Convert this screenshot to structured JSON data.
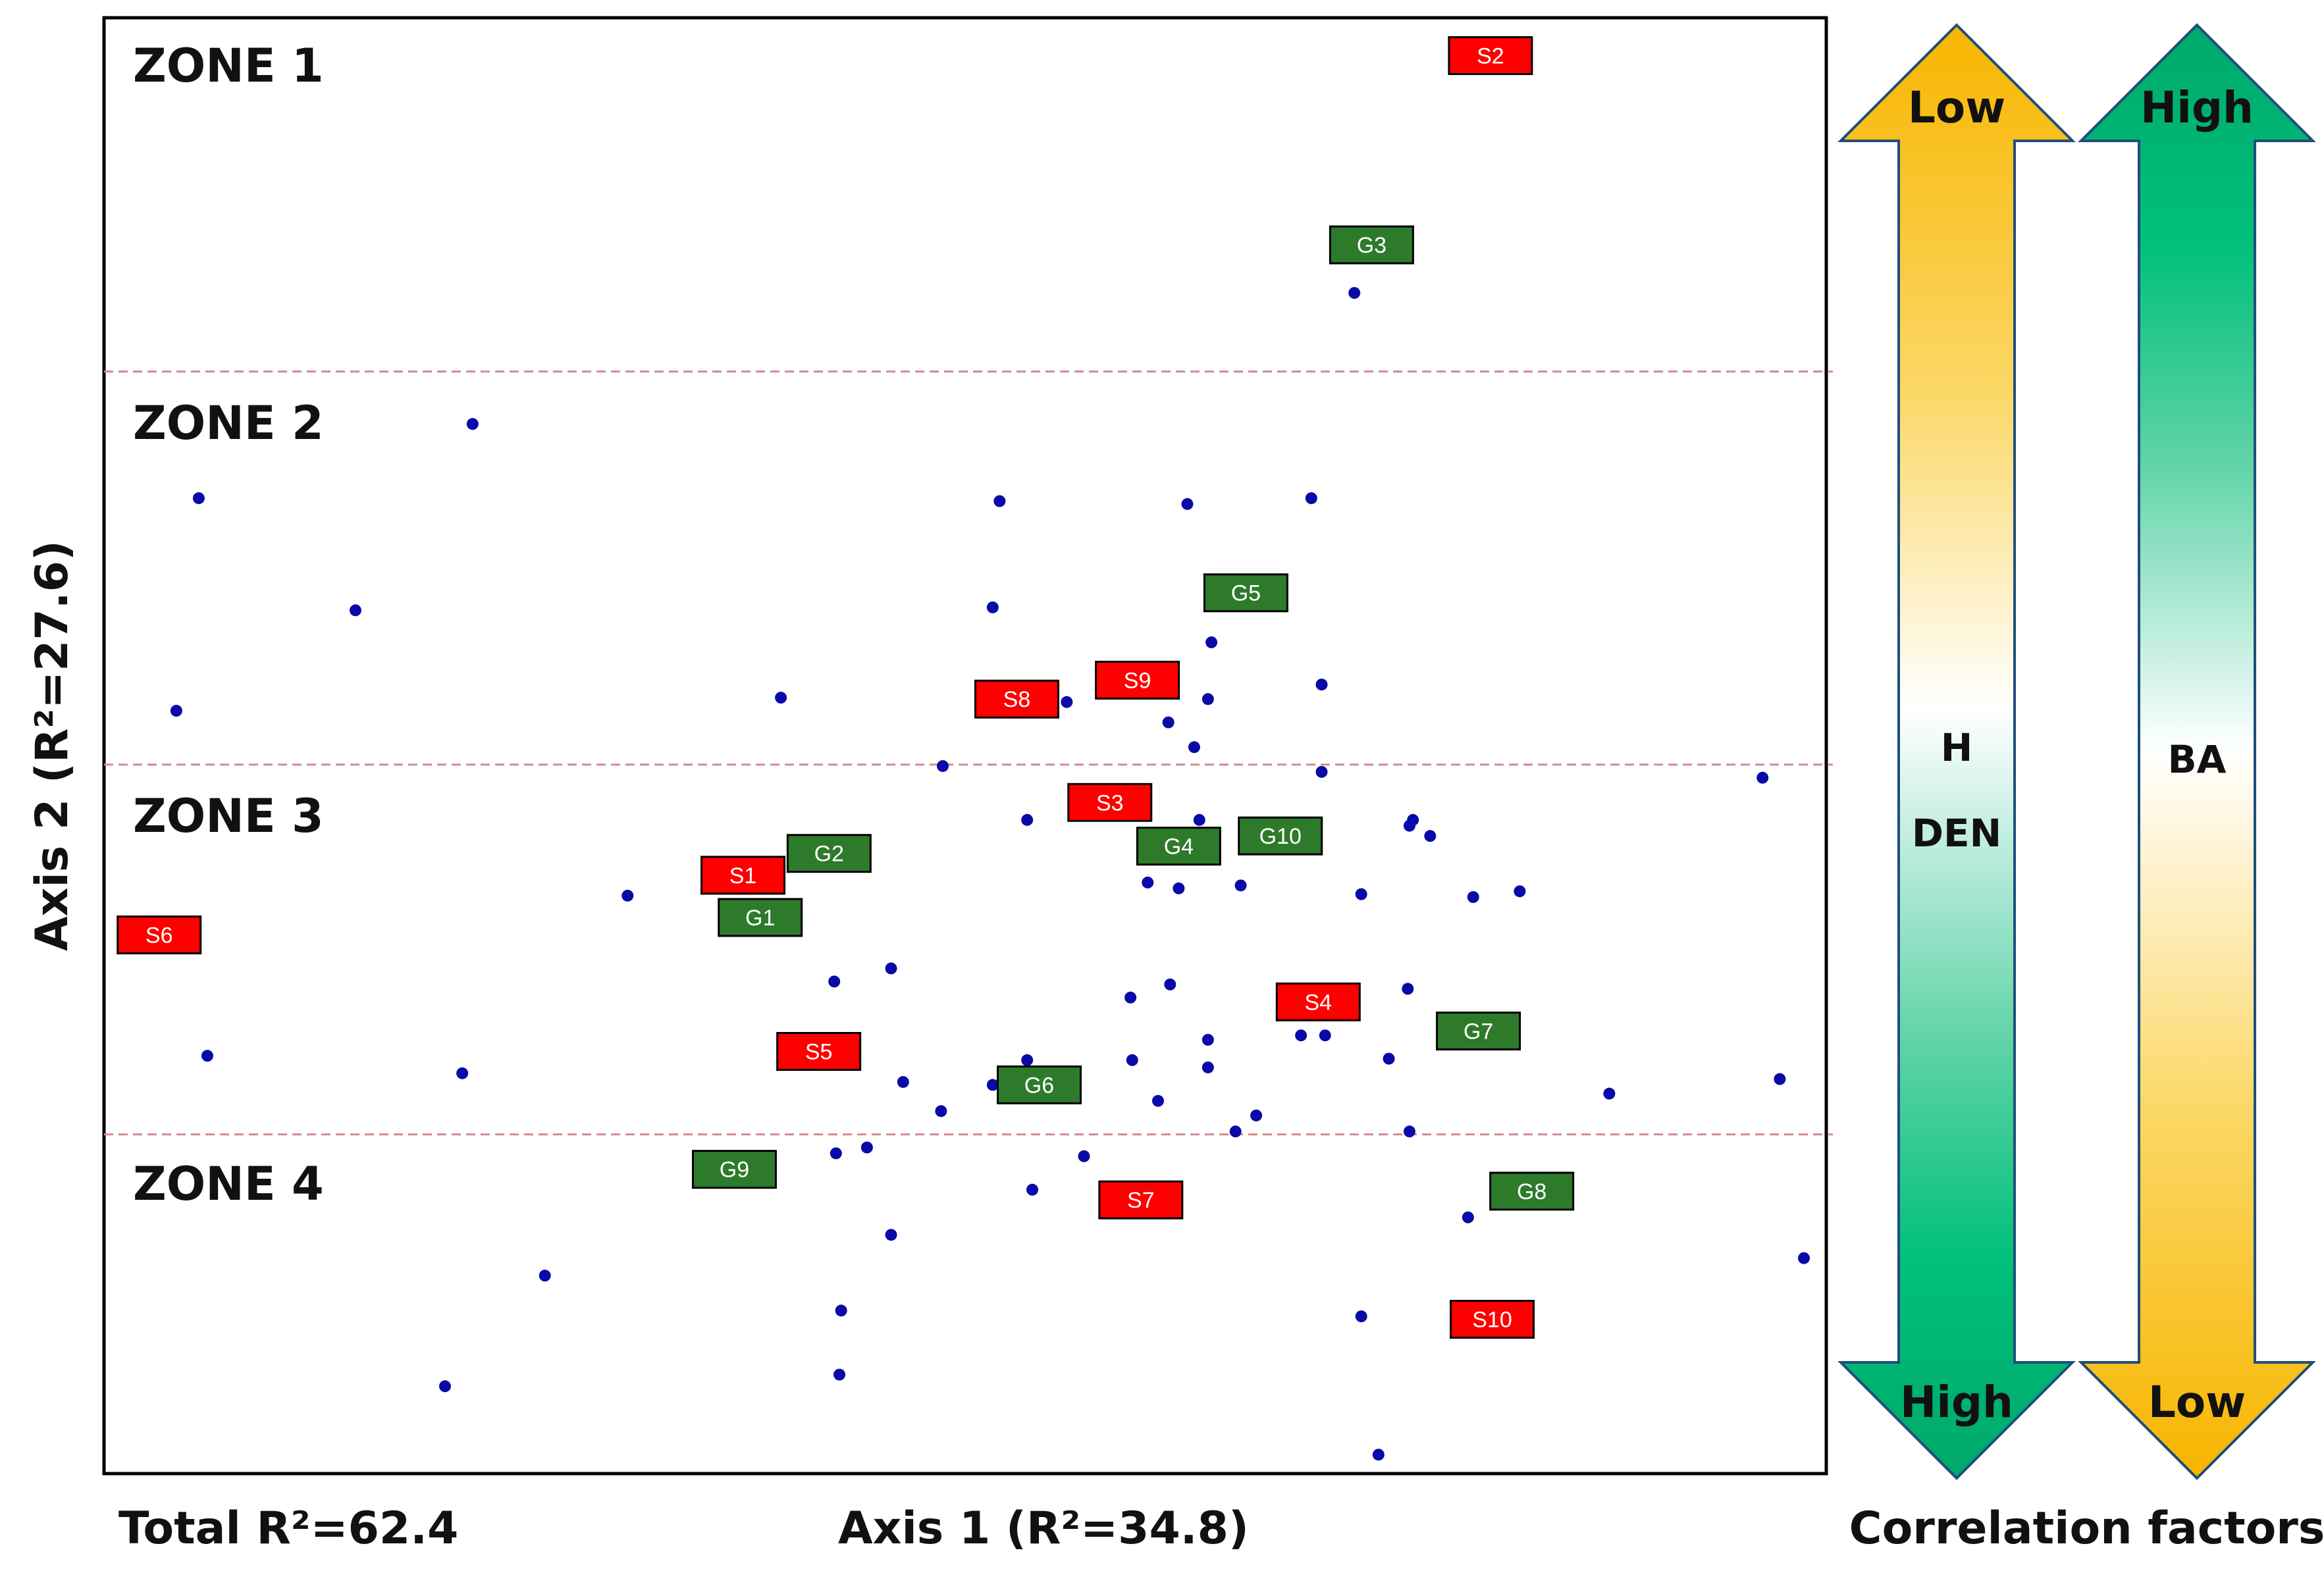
{
  "chart_data": {
    "type": "scatter",
    "xlabel": "Axis 1 (R²=34.8)",
    "ylabel": "Axis 2 (R²=27.6)",
    "footnote": "Total R²=62.4",
    "xlim": [
      0,
      100
    ],
    "ylim": [
      0,
      100
    ],
    "grid": false,
    "zone_boundaries": [
      75.7,
      48.7,
      23.3
    ],
    "zones": [
      "ZONE 1",
      "ZONE 2",
      "ZONE 3",
      "ZONE 4"
    ],
    "points": [
      {
        "x": 72.6,
        "y": 81.1
      },
      {
        "x": 21.4,
        "y": 72.1
      },
      {
        "x": 5.5,
        "y": 67.0
      },
      {
        "x": 14.6,
        "y": 59.3
      },
      {
        "x": 4.2,
        "y": 52.4
      },
      {
        "x": 52.0,
        "y": 66.8
      },
      {
        "x": 62.9,
        "y": 66.6
      },
      {
        "x": 70.1,
        "y": 67.0
      },
      {
        "x": 51.6,
        "y": 59.5
      },
      {
        "x": 64.3,
        "y": 57.1
      },
      {
        "x": 70.7,
        "y": 54.2
      },
      {
        "x": 39.3,
        "y": 53.3
      },
      {
        "x": 55.9,
        "y": 53.0
      },
      {
        "x": 64.1,
        "y": 53.2
      },
      {
        "x": 61.8,
        "y": 51.6
      },
      {
        "x": 63.3,
        "y": 49.9
      },
      {
        "x": 48.7,
        "y": 48.6
      },
      {
        "x": 70.7,
        "y": 48.2
      },
      {
        "x": 96.3,
        "y": 47.8
      },
      {
        "x": 53.6,
        "y": 44.9
      },
      {
        "x": 63.6,
        "y": 44.9
      },
      {
        "x": 75.8,
        "y": 44.5
      },
      {
        "x": 76.0,
        "y": 44.9
      },
      {
        "x": 77.0,
        "y": 43.8
      },
      {
        "x": 60.6,
        "y": 40.6
      },
      {
        "x": 62.4,
        "y": 40.2
      },
      {
        "x": 66.0,
        "y": 40.4
      },
      {
        "x": 73.0,
        "y": 39.8
      },
      {
        "x": 79.5,
        "y": 39.6
      },
      {
        "x": 82.2,
        "y": 40.0
      },
      {
        "x": 30.4,
        "y": 39.7
      },
      {
        "x": 42.4,
        "y": 33.8
      },
      {
        "x": 45.7,
        "y": 34.7
      },
      {
        "x": 59.6,
        "y": 32.7
      },
      {
        "x": 61.9,
        "y": 33.6
      },
      {
        "x": 75.7,
        "y": 33.3
      },
      {
        "x": 6.0,
        "y": 28.7
      },
      {
        "x": 20.8,
        "y": 27.5
      },
      {
        "x": 53.6,
        "y": 28.4
      },
      {
        "x": 64.1,
        "y": 29.8
      },
      {
        "x": 69.5,
        "y": 30.1
      },
      {
        "x": 70.9,
        "y": 30.1
      },
      {
        "x": 59.7,
        "y": 28.4
      },
      {
        "x": 64.1,
        "y": 27.9
      },
      {
        "x": 74.6,
        "y": 28.5
      },
      {
        "x": 46.4,
        "y": 26.9
      },
      {
        "x": 51.6,
        "y": 26.7
      },
      {
        "x": 61.2,
        "y": 25.6
      },
      {
        "x": 48.6,
        "y": 24.9
      },
      {
        "x": 66.9,
        "y": 24.6
      },
      {
        "x": 65.7,
        "y": 23.5
      },
      {
        "x": 75.8,
        "y": 23.5
      },
      {
        "x": 87.4,
        "y": 26.1
      },
      {
        "x": 97.3,
        "y": 27.1
      },
      {
        "x": 44.3,
        "y": 22.4
      },
      {
        "x": 42.5,
        "y": 22.0
      },
      {
        "x": 56.9,
        "y": 21.8
      },
      {
        "x": 53.9,
        "y": 19.5
      },
      {
        "x": 79.2,
        "y": 17.6
      },
      {
        "x": 45.7,
        "y": 16.4
      },
      {
        "x": 25.6,
        "y": 13.6
      },
      {
        "x": 42.8,
        "y": 11.2
      },
      {
        "x": 73.0,
        "y": 10.8
      },
      {
        "x": 98.7,
        "y": 14.8
      },
      {
        "x": 19.8,
        "y": 6.0
      },
      {
        "x": 42.7,
        "y": 6.8
      },
      {
        "x": 74.0,
        "y": 1.3
      }
    ],
    "labels": [
      {
        "text": "S2",
        "group": "S",
        "x": 80.5,
        "y": 97.4
      },
      {
        "text": "G3",
        "group": "G",
        "x": 73.6,
        "y": 84.4
      },
      {
        "text": "G5",
        "group": "G",
        "x": 66.3,
        "y": 60.5
      },
      {
        "text": "S9",
        "group": "S",
        "x": 60.0,
        "y": 54.5
      },
      {
        "text": "S8",
        "group": "S",
        "x": 53.0,
        "y": 53.2
      },
      {
        "text": "S3",
        "group": "S",
        "x": 58.4,
        "y": 46.1
      },
      {
        "text": "G10",
        "group": "G",
        "x": 68.3,
        "y": 43.8
      },
      {
        "text": "G4",
        "group": "G",
        "x": 62.4,
        "y": 43.1
      },
      {
        "text": "G2",
        "group": "G",
        "x": 42.1,
        "y": 42.6
      },
      {
        "text": "S1",
        "group": "S",
        "x": 37.1,
        "y": 41.1
      },
      {
        "text": "G1",
        "group": "G",
        "x": 38.1,
        "y": 38.2
      },
      {
        "text": "S6",
        "group": "S",
        "x": 3.2,
        "y": 37.0
      },
      {
        "text": "S4",
        "group": "S",
        "x": 70.5,
        "y": 32.4
      },
      {
        "text": "G7",
        "group": "G",
        "x": 79.8,
        "y": 30.4
      },
      {
        "text": "S5",
        "group": "S",
        "x": 41.5,
        "y": 29.0
      },
      {
        "text": "G6",
        "group": "G",
        "x": 54.3,
        "y": 26.7
      },
      {
        "text": "G9",
        "group": "G",
        "x": 36.6,
        "y": 20.9
      },
      {
        "text": "G8",
        "group": "G",
        "x": 82.9,
        "y": 19.4
      },
      {
        "text": "S7",
        "group": "S",
        "x": 60.2,
        "y": 18.8
      },
      {
        "text": "S10",
        "group": "S",
        "x": 80.6,
        "y": 10.6
      }
    ],
    "colors": {
      "point": "#0a0aa8",
      "S": "#ff0000",
      "G": "#2e7a2b",
      "zone_line": "#d88a8a",
      "amber": "#f7b500",
      "green": "#00a86b"
    },
    "legend": {
      "title": "Correlation factors",
      "arrows": [
        {
          "top": "Low",
          "bottom": "High",
          "middle": [
            "H",
            "DEN"
          ],
          "scheme": "amber-to-green"
        },
        {
          "top": "High",
          "bottom": "Low",
          "middle": [
            "BA"
          ],
          "scheme": "green-to-amber"
        }
      ]
    }
  }
}
